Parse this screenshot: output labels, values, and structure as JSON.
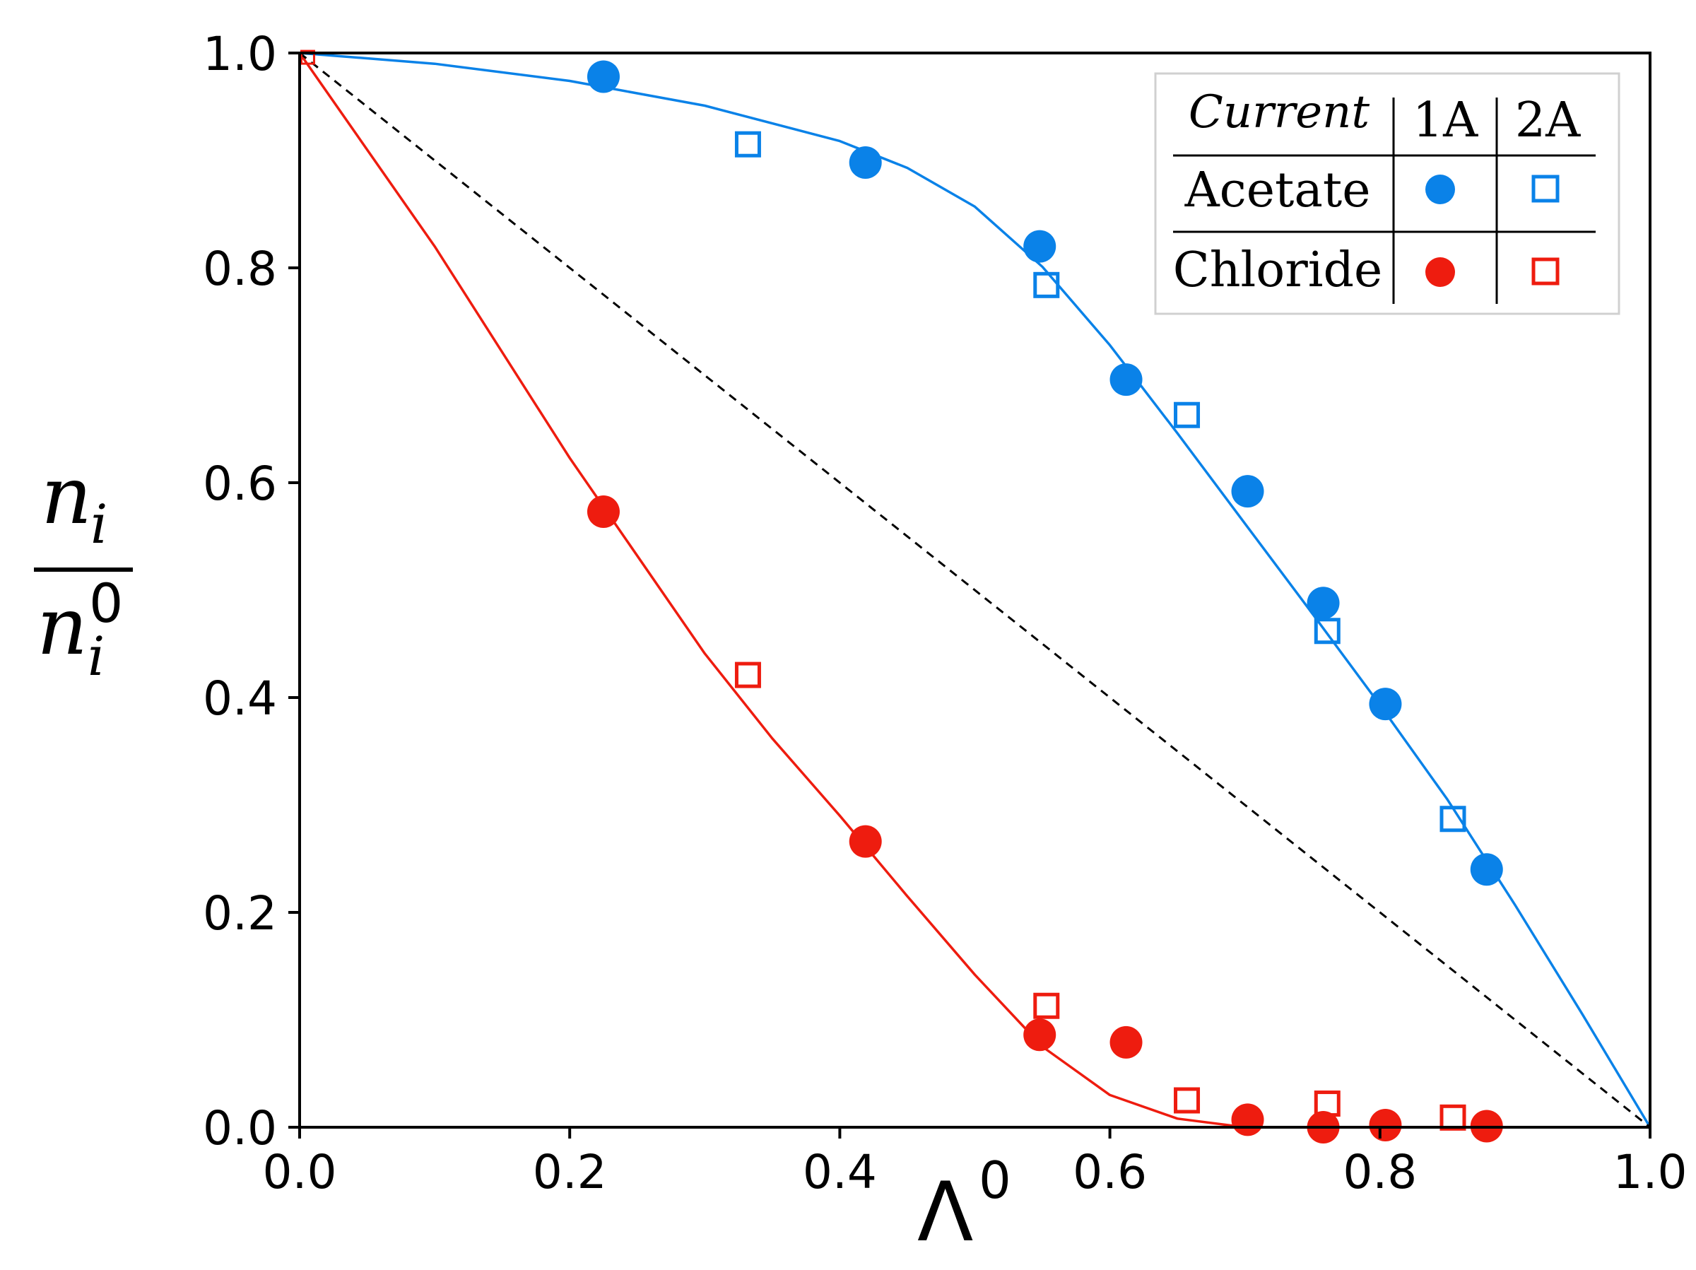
{
  "chart_data": {
    "type": "scatter",
    "xlabel": {
      "symbol": "Λ",
      "sup": "0"
    },
    "ylabel": {
      "num_base": "n",
      "num_sub": "i",
      "den_base": "n",
      "den_sub": "i",
      "den_sup": "0"
    },
    "xlim": [
      0.0,
      1.0
    ],
    "ylim": [
      0.0,
      1.0
    ],
    "x_ticks": [
      "0.0",
      "0.2",
      "0.4",
      "0.6",
      "0.8",
      "1.0"
    ],
    "y_ticks": [
      "0.0",
      "0.2",
      "0.4",
      "0.6",
      "0.8",
      "1.0"
    ],
    "grid": false,
    "colors": {
      "acetate": "#0a82e8",
      "chloride": "#ee1c0f",
      "reference": "#000000"
    },
    "legend": {
      "placement": "top-right",
      "header": "Current",
      "col1": "1A",
      "col2": "2A",
      "row1": "Acetate",
      "row2": "Chloride"
    },
    "series": [
      {
        "name": "Acetate 1A",
        "marker": "filled-circle",
        "color": "#0a82e8",
        "points": [
          [
            0.225,
            0.978
          ],
          [
            0.419,
            0.898
          ],
          [
            0.548,
            0.82
          ],
          [
            0.612,
            0.696
          ],
          [
            0.702,
            0.592
          ],
          [
            0.758,
            0.488
          ],
          [
            0.804,
            0.394
          ],
          [
            0.879,
            0.24
          ]
        ]
      },
      {
        "name": "Acetate 2A",
        "marker": "open-square",
        "color": "#0a82e8",
        "points": [
          [
            0.332,
            0.915
          ],
          [
            0.553,
            0.784
          ],
          [
            0.657,
            0.663
          ],
          [
            0.761,
            0.462
          ],
          [
            0.854,
            0.287
          ]
        ]
      },
      {
        "name": "Chloride 1A",
        "marker": "filled-circle",
        "color": "#ee1c0f",
        "points": [
          [
            0.225,
            0.573
          ],
          [
            0.419,
            0.266
          ],
          [
            0.548,
            0.086
          ],
          [
            0.612,
            0.079
          ],
          [
            0.702,
            0.007
          ],
          [
            0.758,
            0.0
          ],
          [
            0.804,
            0.002
          ],
          [
            0.879,
            0.001
          ]
        ]
      },
      {
        "name": "Chloride 2A",
        "marker": "open-square",
        "color": "#ee1c0f",
        "points": [
          [
            0.332,
            0.421
          ],
          [
            0.553,
            0.113
          ],
          [
            0.657,
            0.025
          ],
          [
            0.761,
            0.022
          ],
          [
            0.854,
            0.009
          ]
        ]
      },
      {
        "name": "Origin point",
        "marker": "open-square-small",
        "color": "#ee1c0f",
        "points": [
          [
            0.006,
            0.996
          ]
        ]
      }
    ],
    "fit_lines": [
      {
        "name": "Acetate fit",
        "color": "#0a82e8",
        "points": [
          [
            0.0,
            1.0
          ],
          [
            0.1,
            0.99
          ],
          [
            0.2,
            0.974
          ],
          [
            0.3,
            0.951
          ],
          [
            0.4,
            0.918
          ],
          [
            0.45,
            0.893
          ],
          [
            0.5,
            0.857
          ],
          [
            0.55,
            0.801
          ],
          [
            0.6,
            0.728
          ],
          [
            0.65,
            0.646
          ],
          [
            0.7,
            0.562
          ],
          [
            0.75,
            0.478
          ],
          [
            0.8,
            0.393
          ],
          [
            0.85,
            0.305
          ],
          [
            0.9,
            0.207
          ],
          [
            0.95,
            0.105
          ],
          [
            1.0,
            0.0
          ]
        ]
      },
      {
        "name": "Chloride fit",
        "color": "#ee1c0f",
        "points": [
          [
            0.0,
            1.0
          ],
          [
            0.1,
            0.82
          ],
          [
            0.2,
            0.623
          ],
          [
            0.3,
            0.441
          ],
          [
            0.35,
            0.362
          ],
          [
            0.4,
            0.29
          ],
          [
            0.45,
            0.215
          ],
          [
            0.5,
            0.142
          ],
          [
            0.55,
            0.075
          ],
          [
            0.6,
            0.03
          ],
          [
            0.65,
            0.008
          ],
          [
            0.7,
            0.0
          ],
          [
            0.75,
            0.0
          ]
        ]
      },
      {
        "name": "Reference diagonal",
        "color": "#000000",
        "style": "dashed",
        "points": [
          [
            0.0,
            1.0
          ],
          [
            1.0,
            0.0
          ]
        ]
      }
    ]
  }
}
